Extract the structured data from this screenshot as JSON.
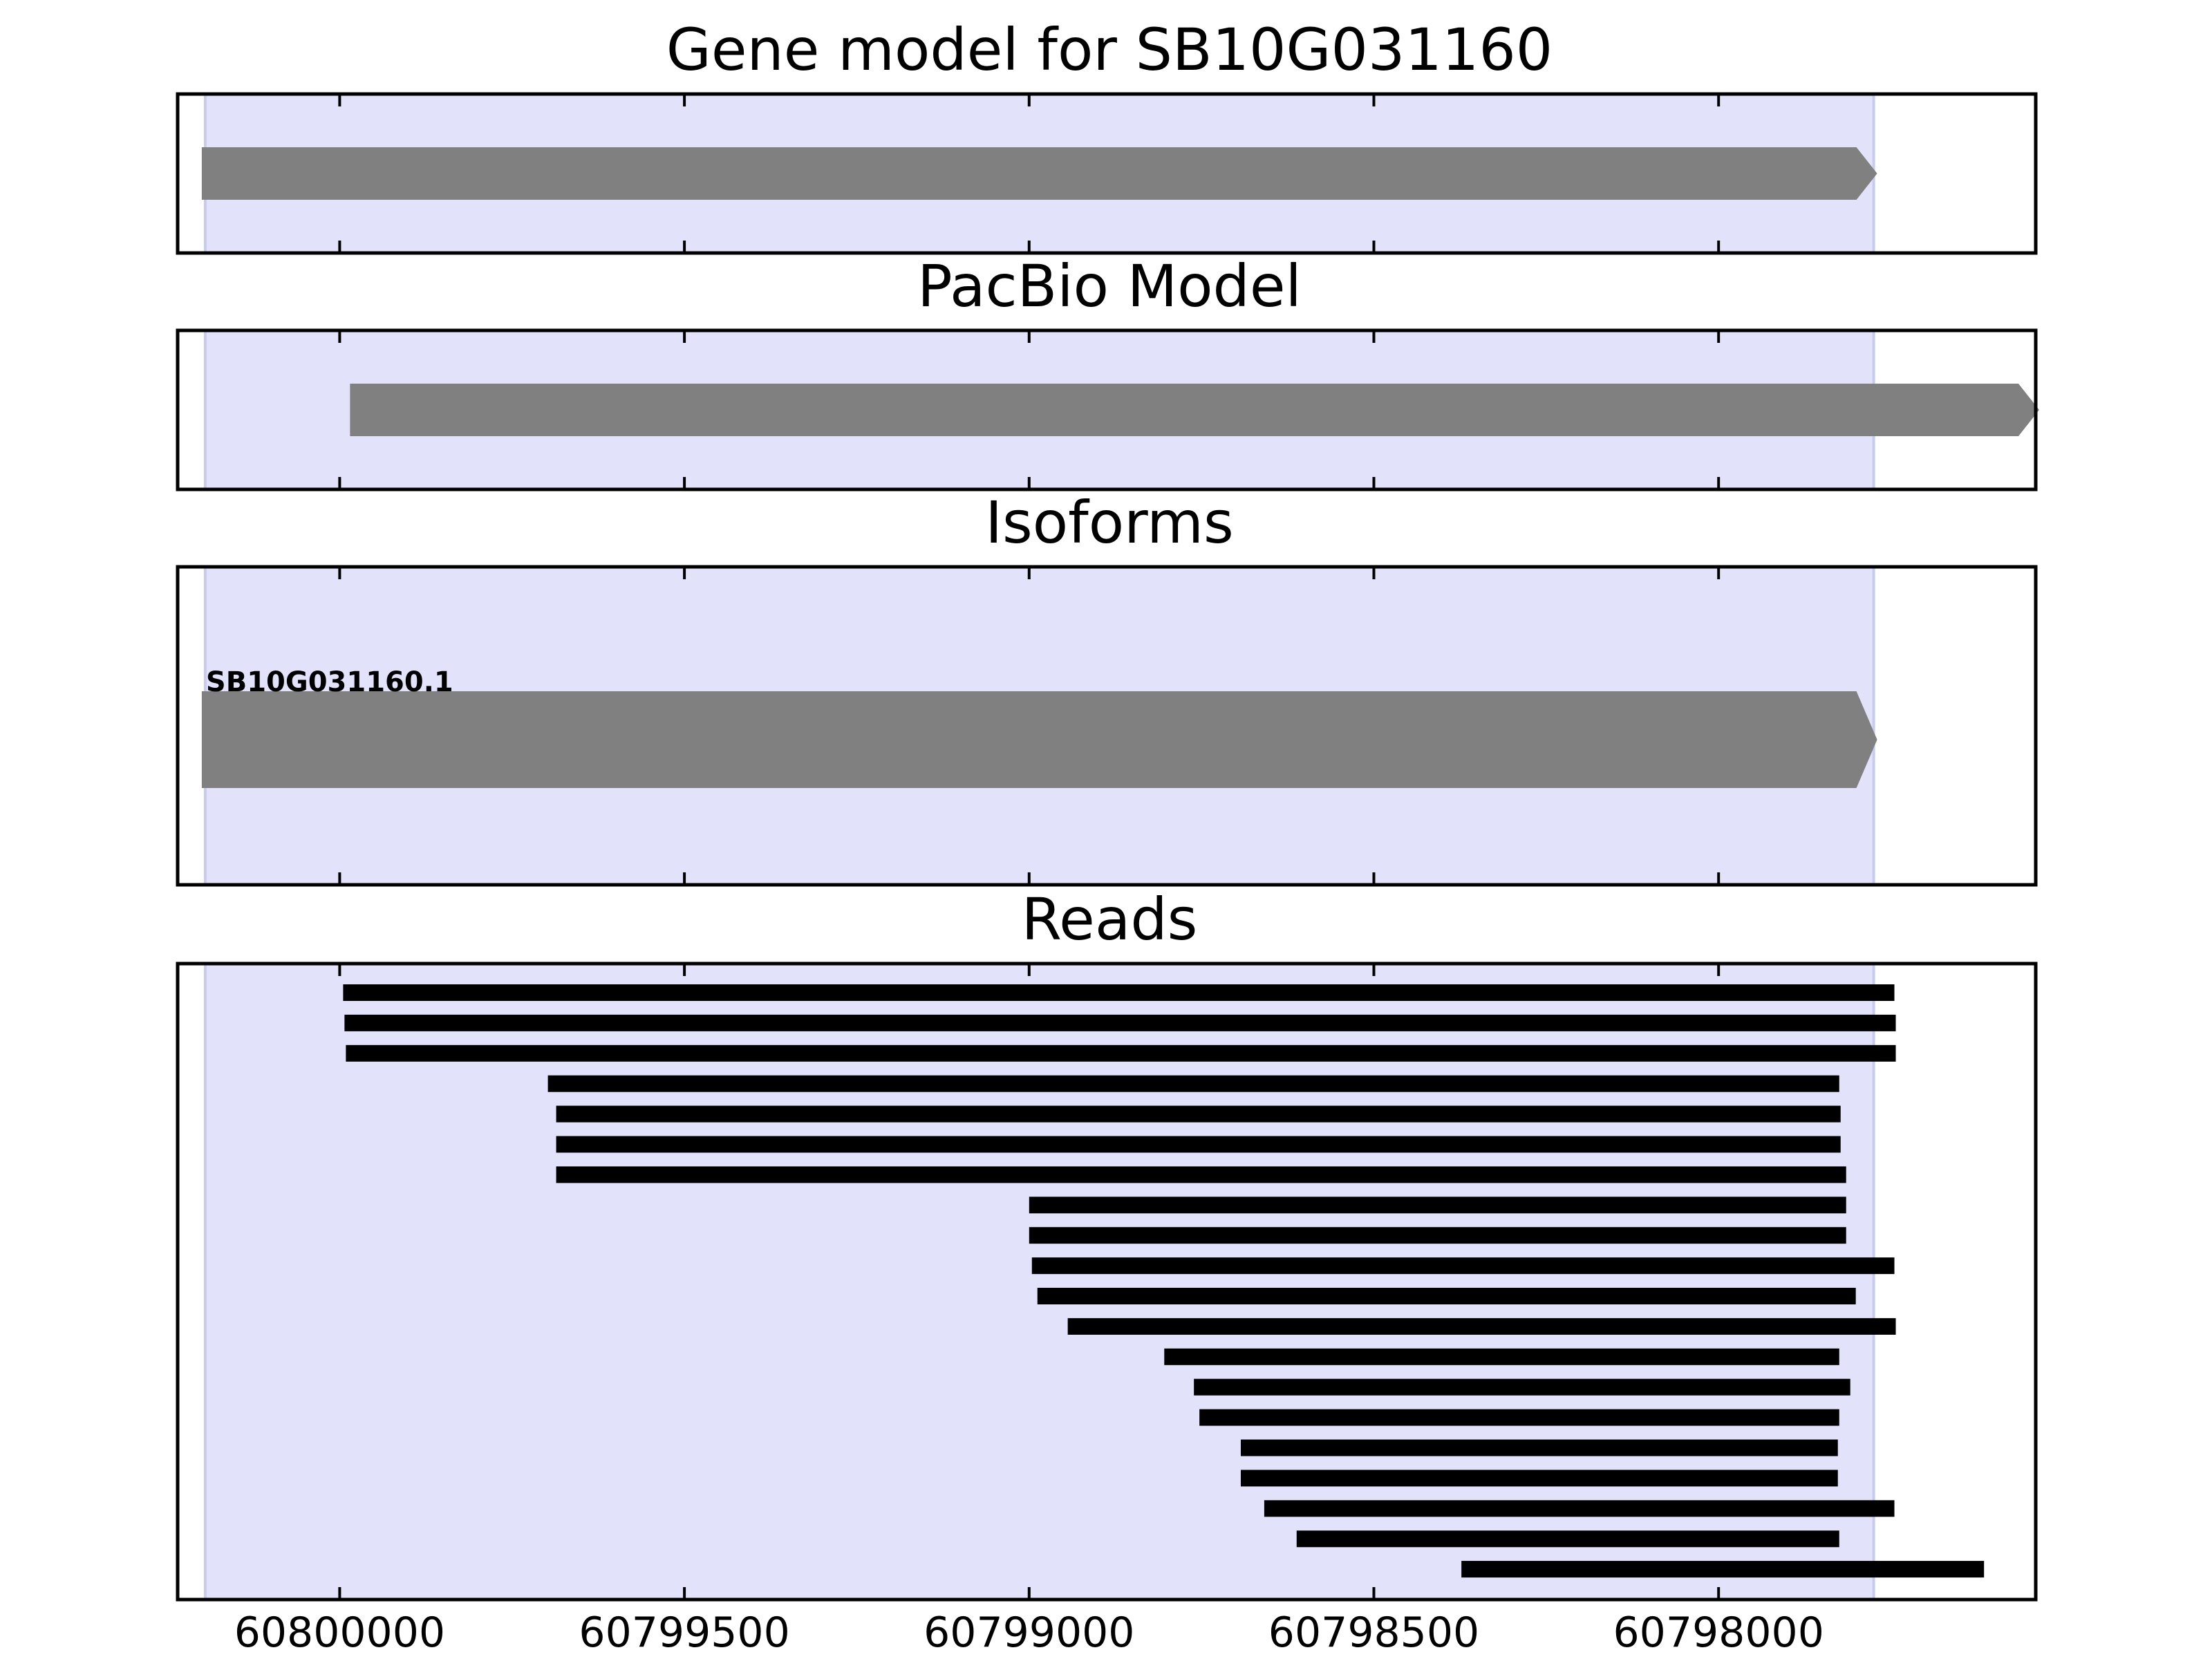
{
  "chart_data": {
    "type": "gene-track",
    "x_axis": {
      "direction": "reversed",
      "xlim": [
        60800235,
        60797540
      ],
      "ticks": [
        60800000,
        60799500,
        60799000,
        60798500,
        60798000
      ],
      "tick_labels": [
        "60800000",
        "60799500",
        "60799000",
        "60798500",
        "60798000"
      ]
    },
    "highlight_region": {
      "start": 60800195,
      "end": 60797775,
      "color": "#e2e3fb"
    },
    "feature_color": "#808080",
    "read_color": "#000000",
    "panels": [
      {
        "name": "gene-model",
        "title": "Gene model for SB10G031160",
        "features": [
          {
            "start": 60800200,
            "end": 60797770,
            "strand": "-"
          }
        ]
      },
      {
        "name": "pacbio-model",
        "title": "PacBio Model",
        "features": [
          {
            "start": 60799985,
            "end": 60797535,
            "strand": "-"
          }
        ]
      },
      {
        "name": "isoforms",
        "title": "Isoforms",
        "features": [
          {
            "label": "SB10G031160.1",
            "start": 60800200,
            "end": 60797770,
            "strand": "-"
          }
        ]
      },
      {
        "name": "reads",
        "title": "Reads",
        "reads": [
          {
            "start": 60799995,
            "end": 60797745
          },
          {
            "start": 60799993,
            "end": 60797743
          },
          {
            "start": 60799991,
            "end": 60797743
          },
          {
            "start": 60799698,
            "end": 60797825
          },
          {
            "start": 60799686,
            "end": 60797823
          },
          {
            "start": 60799686,
            "end": 60797823
          },
          {
            "start": 60799686,
            "end": 60797815
          },
          {
            "start": 60799000,
            "end": 60797815
          },
          {
            "start": 60799000,
            "end": 60797815
          },
          {
            "start": 60798996,
            "end": 60797745
          },
          {
            "start": 60798988,
            "end": 60797801
          },
          {
            "start": 60798944,
            "end": 60797743
          },
          {
            "start": 60798804,
            "end": 60797825
          },
          {
            "start": 60798761,
            "end": 60797809
          },
          {
            "start": 60798753,
            "end": 60797825
          },
          {
            "start": 60798693,
            "end": 60797827
          },
          {
            "start": 60798693,
            "end": 60797827
          },
          {
            "start": 60798659,
            "end": 60797745
          },
          {
            "start": 60798612,
            "end": 60797825
          },
          {
            "start": 60798373,
            "end": 60797615
          }
        ]
      }
    ]
  }
}
